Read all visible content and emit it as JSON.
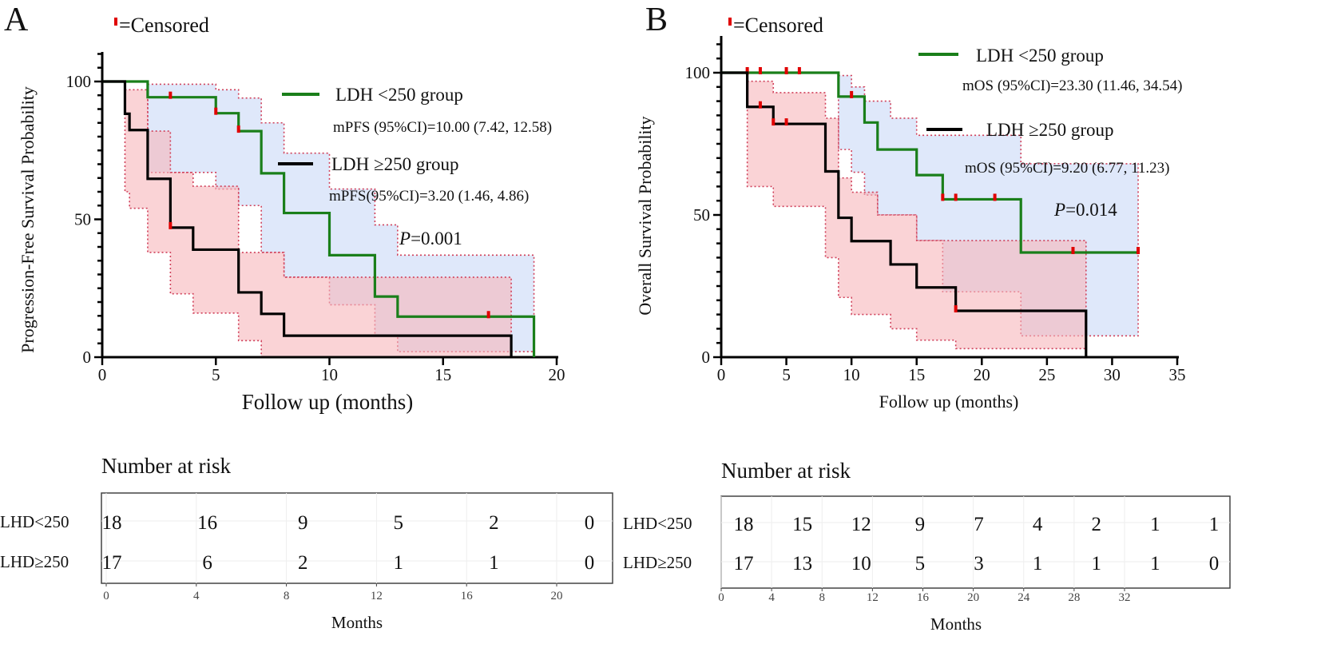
{
  "colors": {
    "green": "#1a7f1a",
    "black": "#000000",
    "censor": "#e00000",
    "blue_band": "#c9d9f6",
    "pink_band": "#f7b5bb",
    "band_border": "#d0405a"
  },
  "chart_data": [
    {
      "type": "line",
      "panel_label": "A",
      "censored_legend": "=Censored",
      "ylabel": "Progression-Free Survival Probability",
      "xlabel": "Follow up (months)",
      "xlim": [
        0,
        20
      ],
      "ylim": [
        0,
        100
      ],
      "xticks": [
        "0",
        "5",
        "10",
        "15",
        "20"
      ],
      "yticks": [
        "0",
        "50",
        "100"
      ],
      "pvalue_prefix": "P",
      "pvalue_text": "=0.001",
      "series": [
        {
          "name": "LDH <250 group",
          "color_key": "green",
          "stat": "mPFS (95%CI)=10.00 (7.42, 12.58)",
          "steps": [
            [
              0,
              100
            ],
            [
              2,
              94.3
            ],
            [
              5,
              88.5
            ],
            [
              6,
              82
            ],
            [
              7,
              66.7
            ],
            [
              8,
              52.3
            ],
            [
              10,
              37
            ],
            [
              12,
              22
            ],
            [
              13,
              14.7
            ]
          ],
          "end": 19,
          "drop_to_zero": true,
          "censored": [
            [
              3,
              94.3
            ],
            [
              5,
              88.5
            ],
            [
              6,
              82
            ],
            [
              17,
              14.7
            ]
          ],
          "ci": [
            [
              2,
              67,
              99
            ],
            [
              5,
              61,
              97
            ],
            [
              6,
              55,
              94
            ],
            [
              7,
              38,
              85
            ],
            [
              8,
              29,
              74
            ],
            [
              10,
              19,
              61
            ],
            [
              12,
              8,
              48
            ],
            [
              13,
              2,
              37
            ]
          ],
          "ci_end": 19,
          "ci_color_key": "blue_band"
        },
        {
          "name": "LDH ≥250 group",
          "color_key": "black",
          "stat": "mPFS(95%CI)=3.20 (1.46, 4.86)",
          "steps": [
            [
              0,
              100
            ],
            [
              1,
              88.3
            ],
            [
              1.2,
              82.4
            ],
            [
              2,
              64.7
            ],
            [
              3,
              47
            ],
            [
              4,
              39
            ],
            [
              6,
              23.5
            ],
            [
              7,
              15.7
            ],
            [
              8,
              7.8
            ]
          ],
          "end": 18,
          "drop_to_zero": true,
          "censored": [
            [
              3,
              47
            ]
          ],
          "ci": [
            [
              1,
              60,
              97
            ],
            [
              1.2,
              54,
              97
            ],
            [
              2,
              38,
              82
            ],
            [
              3,
              23,
              67
            ],
            [
              4,
              16,
              62
            ],
            [
              6,
              6,
              38
            ],
            [
              7,
              0,
              38
            ],
            [
              8,
              0,
              29
            ]
          ],
          "ci_end": 18,
          "ci_color_key": "pink_band"
        }
      ],
      "risk_table": {
        "title": "Number at risk",
        "xlabel": "Months",
        "ticks": [
          "0",
          "4",
          "8",
          "12",
          "16",
          "20"
        ],
        "rows": [
          {
            "label": "LHD<250",
            "values": [
              "18",
              "16",
              "9",
              "5",
              "2",
              "0"
            ]
          },
          {
            "label": "LHD≥250",
            "values": [
              "17",
              "6",
              "2",
              "1",
              "1",
              "0"
            ]
          }
        ]
      }
    },
    {
      "type": "line",
      "panel_label": "B",
      "censored_legend": "=Censored",
      "ylabel": "Overall Survival Probability",
      "xlabel": "Follow up (months)",
      "xlim": [
        0,
        35
      ],
      "ylim": [
        0,
        100
      ],
      "xticks": [
        "0",
        "5",
        "10",
        "15",
        "20",
        "25",
        "30",
        "35"
      ],
      "yticks": [
        "0",
        "50",
        "100"
      ],
      "pvalue_prefix": "P",
      "pvalue_text": "=0.014",
      "series": [
        {
          "name": "LDH <250 group",
          "color_key": "green",
          "stat": "mOS (95%CI)=23.30 (11.46, 34.54)",
          "steps": [
            [
              0,
              100
            ],
            [
              9,
              91.6
            ],
            [
              11,
              82.5
            ],
            [
              12,
              73
            ],
            [
              15,
              64
            ],
            [
              17,
              55.5
            ],
            [
              23,
              36.8
            ]
          ],
          "end": 32,
          "drop_to_zero": false,
          "censored": [
            [
              2,
              100
            ],
            [
              3,
              100
            ],
            [
              5,
              100
            ],
            [
              6,
              100
            ],
            [
              10,
              91.6
            ],
            [
              17,
              55.5
            ],
            [
              18,
              55.5
            ],
            [
              21,
              55.5
            ],
            [
              27,
              36.8
            ],
            [
              32,
              36.8
            ]
          ],
          "ci": [
            [
              9,
              73,
              99
            ],
            [
              10,
              65,
              95
            ],
            [
              11,
              57,
              90
            ],
            [
              12,
              50,
              90
            ],
            [
              13,
              50,
              84
            ],
            [
              15,
              41,
              78
            ],
            [
              17,
              23,
              78
            ],
            [
              23,
              7.5,
              68
            ]
          ],
          "ci_end": 32,
          "ci_color_key": "blue_band"
        },
        {
          "name": "LDH ≥250 group",
          "color_key": "black",
          "stat": "mOS (95%CI)=9.20 (6.77, 11.23)",
          "steps": [
            [
              0,
              100
            ],
            [
              2,
              88
            ],
            [
              4,
              82
            ],
            [
              8,
              65.3
            ],
            [
              9,
              49
            ],
            [
              10,
              40.8
            ],
            [
              13,
              32.6
            ],
            [
              15,
              24.5
            ],
            [
              18,
              16.3
            ]
          ],
          "end": 28,
          "drop_to_zero": true,
          "censored": [
            [
              3,
              88
            ],
            [
              4,
              82
            ],
            [
              5,
              82
            ],
            [
              18,
              16.3
            ]
          ],
          "ci": [
            [
              2,
              60,
              97
            ],
            [
              4,
              53,
              93
            ],
            [
              8,
              35,
              84
            ],
            [
              9,
              21,
              63
            ],
            [
              10,
              15,
              58
            ],
            [
              12,
              15,
              50
            ],
            [
              13,
              10,
              50
            ],
            [
              15,
              6,
              41
            ],
            [
              18,
              3,
              41
            ]
          ],
          "ci_end": 28,
          "ci_color_key": "pink_band"
        }
      ],
      "risk_table": {
        "title": "Number at risk",
        "xlabel": "Months",
        "ticks": [
          "0",
          "4",
          "8",
          "12",
          "16",
          "20",
          "24",
          "28",
          "32"
        ],
        "rows": [
          {
            "label": "LHD<250",
            "values": [
              "18",
              "15",
              "12",
              "9",
              "7",
              "4",
              "2",
              "1",
              "1"
            ]
          },
          {
            "label": "LHD≥250",
            "values": [
              "17",
              "13",
              "10",
              "5",
              "3",
              "1",
              "1",
              "1",
              "0"
            ]
          }
        ]
      }
    }
  ]
}
